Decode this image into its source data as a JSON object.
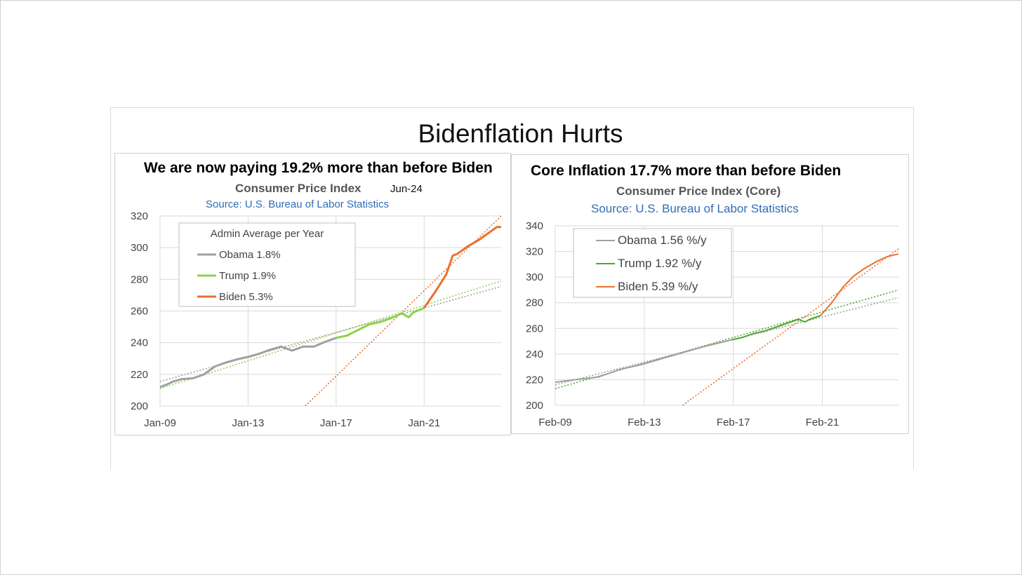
{
  "slide": {
    "title": "Bidenflation Hurts"
  },
  "colors": {
    "obama": "#a0a0a0",
    "trump_left": "#8fd14f",
    "trump_right": "#4ea72e",
    "biden": "#e97132",
    "grid": "#d9d9d9",
    "source": "#2f6db5"
  },
  "chart_data": [
    {
      "type": "line",
      "headline": "We are now paying 19.2% more than before Biden",
      "title": "Consumer Price Index",
      "date_tag": "Jun-24",
      "source": "Source: U.S. Bureau of Labor Statistics",
      "xlim": [
        2009.0,
        2024.5
      ],
      "ylim": [
        200,
        320
      ],
      "y_ticks": [
        200,
        220,
        240,
        260,
        280,
        300,
        320
      ],
      "x_ticks": [
        {
          "label": "Jan-09",
          "x": 2009.0
        },
        {
          "label": "Jan-13",
          "x": 2013.0
        },
        {
          "label": "Jan-17",
          "x": 2017.0
        },
        {
          "label": "Jan-21",
          "x": 2021.0
        }
      ],
      "grid": true,
      "legend": {
        "title": "Admin Average per Year",
        "position": "top-left",
        "items": [
          {
            "name": "Obama 1.8%",
            "series": "obama"
          },
          {
            "name": "Trump 1.9%",
            "series": "trump"
          },
          {
            "name": "Biden 5.3%",
            "series": "biden"
          }
        ]
      },
      "series": [
        {
          "name": "Obama 1.8%",
          "key": "obama",
          "color": "#a0a0a0",
          "x": [
            2009.0,
            2009.3,
            2009.6,
            2010.0,
            2010.5,
            2011.0,
            2011.5,
            2012.0,
            2012.5,
            2013.0,
            2013.5,
            2014.0,
            2014.5,
            2015.0,
            2015.5,
            2016.0,
            2016.5,
            2017.0
          ],
          "y": [
            212,
            213.5,
            215.5,
            217,
            217.5,
            220,
            225,
            227.5,
            229.5,
            231,
            233,
            235.5,
            237.5,
            235,
            237.5,
            237.5,
            240.5,
            243
          ]
        },
        {
          "name": "Trump 1.9%",
          "key": "trump",
          "color": "#8fd14f",
          "x": [
            2017.0,
            2017.5,
            2018.0,
            2018.5,
            2019.0,
            2019.5,
            2020.0,
            2020.3,
            2020.5,
            2021.0
          ],
          "y": [
            243,
            244.5,
            248,
            251.5,
            253,
            255.5,
            258.5,
            256,
            259,
            262
          ]
        },
        {
          "name": "Biden 5.3%",
          "key": "biden",
          "color": "#e97132",
          "x": [
            2021.0,
            2021.5,
            2022.0,
            2022.3,
            2022.5,
            2023.0,
            2023.5,
            2024.0,
            2024.3,
            2024.5
          ],
          "y": [
            262,
            272,
            283,
            295,
            296,
            301,
            305,
            310,
            313,
            313
          ]
        }
      ],
      "trendlines": [
        {
          "key": "obama",
          "color": "#a0a0a0",
          "x": [
            2009.0,
            2024.5
          ],
          "y": [
            215.5,
            275.5
          ]
        },
        {
          "key": "trump",
          "color": "#8fd14f",
          "x": [
            2009.0,
            2024.5
          ],
          "y": [
            211,
            279
          ]
        },
        {
          "key": "biden",
          "color": "#e97132",
          "x": [
            2015.6,
            2024.5
          ],
          "y": [
            200,
            320
          ]
        }
      ]
    },
    {
      "type": "line",
      "headline": "Core Inflation 17.7% more than before Biden",
      "title": "Consumer Price Index (Core)",
      "source": "Source: U.S. Bureau of Labor Statistics",
      "xlim": [
        2009.08,
        2024.5
      ],
      "ylim": [
        200,
        340
      ],
      "y_ticks": [
        200,
        220,
        240,
        260,
        280,
        300,
        320,
        340
      ],
      "x_ticks": [
        {
          "label": "Feb-09",
          "x": 2009.08
        },
        {
          "label": "Feb-13",
          "x": 2013.08
        },
        {
          "label": "Feb-17",
          "x": 2017.08
        },
        {
          "label": "Feb-21",
          "x": 2021.08
        }
      ],
      "grid": true,
      "legend": {
        "position": "top-left",
        "items": [
          {
            "name": "Obama 1.56 %/y",
            "series": "obama"
          },
          {
            "name": "Trump 1.92 %/y",
            "series": "trump"
          },
          {
            "name": "Biden 5.39 %/y",
            "series": "biden"
          }
        ]
      },
      "series": [
        {
          "name": "Obama 1.56 %/y",
          "key": "obama",
          "color": "#a0a0a0",
          "x": [
            2009.08,
            2010.0,
            2011.0,
            2012.0,
            2013.0,
            2014.0,
            2015.0,
            2016.0,
            2017.0
          ],
          "y": [
            218,
            220,
            222,
            228,
            232,
            237,
            242,
            247,
            251
          ]
        },
        {
          "name": "Trump 1.92 %/y",
          "key": "trump",
          "color": "#4ea72e",
          "x": [
            2017.0,
            2017.5,
            2018.0,
            2018.5,
            2019.0,
            2019.5,
            2020.0,
            2020.3,
            2020.5,
            2021.0
          ],
          "y": [
            251,
            253,
            256,
            258,
            261,
            264,
            267,
            265,
            267,
            270
          ]
        },
        {
          "name": "Biden 5.39 %/y",
          "key": "biden",
          "color": "#e97132",
          "x": [
            2021.0,
            2021.5,
            2022.0,
            2022.5,
            2023.0,
            2023.5,
            2024.0,
            2024.5
          ],
          "y": [
            270,
            280,
            292,
            301,
            307,
            312,
            316,
            318
          ]
        }
      ],
      "trendlines": [
        {
          "key": "obama",
          "color": "#a0a0a0",
          "x": [
            2009.08,
            2024.5
          ],
          "y": [
            216,
            284
          ]
        },
        {
          "key": "trump",
          "color": "#4ea72e",
          "x": [
            2009.08,
            2024.5
          ],
          "y": [
            213,
            290
          ]
        },
        {
          "key": "biden",
          "color": "#e97132",
          "x": [
            2014.8,
            2024.5
          ],
          "y": [
            200,
            322
          ]
        }
      ]
    }
  ]
}
